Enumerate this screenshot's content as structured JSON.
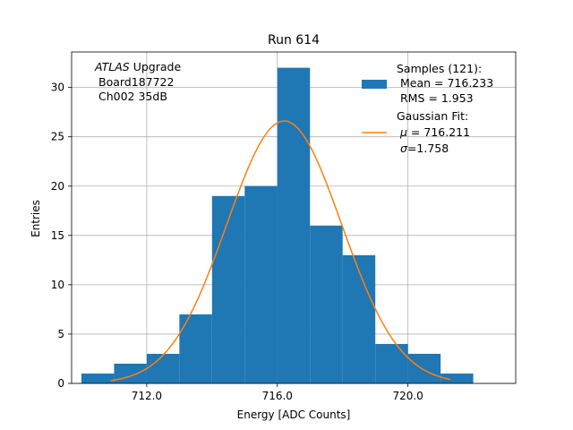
{
  "chart_data": {
    "type": "bar",
    "title": "Run 614",
    "xlabel": "Energy [ADC Counts]",
    "ylabel": "Entries",
    "xlim": [
      709.7,
      723.3
    ],
    "ylim": [
      0,
      33.6
    ],
    "grid": true,
    "x_ticks": [
      712.0,
      716.0,
      720.0
    ],
    "x_tick_labels": [
      "712.0",
      "716.0",
      "720.0"
    ],
    "y_ticks": [
      0,
      5,
      10,
      15,
      20,
      25,
      30
    ],
    "y_tick_labels": [
      "0",
      "5",
      "10",
      "15",
      "20",
      "25",
      "30"
    ],
    "bin_edges": [
      710,
      711,
      712,
      713,
      714,
      715,
      716,
      717,
      718,
      719,
      720,
      721,
      722
    ],
    "values": [
      1,
      2,
      3,
      7,
      19,
      20,
      32,
      16,
      13,
      4,
      3,
      1
    ],
    "bar_color": "#1f77b4",
    "fit": {
      "type": "gaussian",
      "mu": 716.211,
      "sigma": 1.758,
      "amplitude": 26.6,
      "x_range": [
        710.9,
        721.3
      ],
      "color": "#ff7f0e"
    },
    "annotation": {
      "italic": "ATLAS",
      "rest": " Upgrade",
      "line2": "Board187722",
      "line3": "Ch002 35dB"
    },
    "legend": {
      "placement": "top-right",
      "hist_title": "Samples (121):",
      "hist_mean": "Mean = 716.233",
      "hist_rms": "RMS = 1.953",
      "fit_title": "Gaussian Fit:",
      "fit_mu_symbol": "μ",
      "fit_mu": " = 716.211",
      "fit_sigma_symbol": "σ",
      "fit_sigma": "=1.758"
    }
  }
}
